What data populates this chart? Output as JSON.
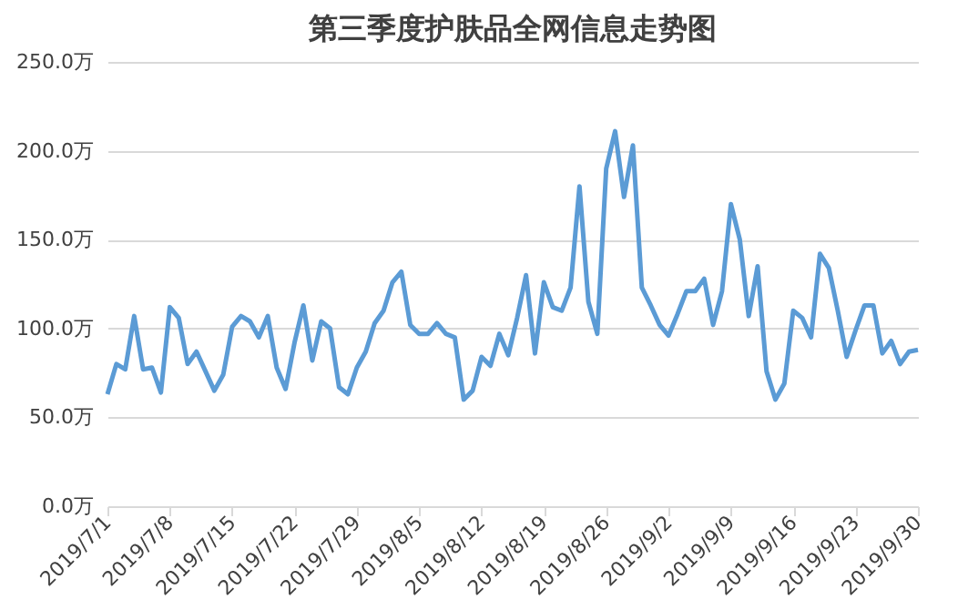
{
  "chart_data": {
    "type": "line",
    "title": "第三季度护肤品全网信息走势图",
    "x": [
      "2019-07-01",
      "2019-07-02",
      "2019-07-03",
      "2019-07-04",
      "2019-07-05",
      "2019-07-06",
      "2019-07-07",
      "2019-07-08",
      "2019-07-09",
      "2019-07-10",
      "2019-07-11",
      "2019-07-12",
      "2019-07-13",
      "2019-07-14",
      "2019-07-15",
      "2019-07-16",
      "2019-07-17",
      "2019-07-18",
      "2019-07-19",
      "2019-07-20",
      "2019-07-21",
      "2019-07-22",
      "2019-07-23",
      "2019-07-24",
      "2019-07-25",
      "2019-07-26",
      "2019-07-27",
      "2019-07-28",
      "2019-07-29",
      "2019-07-30",
      "2019-07-31",
      "2019-08-01",
      "2019-08-02",
      "2019-08-03",
      "2019-08-04",
      "2019-08-05",
      "2019-08-06",
      "2019-08-07",
      "2019-08-08",
      "2019-08-09",
      "2019-08-10",
      "2019-08-11",
      "2019-08-12",
      "2019-08-13",
      "2019-08-14",
      "2019-08-15",
      "2019-08-16",
      "2019-08-17",
      "2019-08-18",
      "2019-08-19",
      "2019-08-20",
      "2019-08-21",
      "2019-08-22",
      "2019-08-23",
      "2019-08-24",
      "2019-08-25",
      "2019-08-26",
      "2019-08-27",
      "2019-08-28",
      "2019-08-29",
      "2019-08-30",
      "2019-08-31",
      "2019-09-01",
      "2019-09-02",
      "2019-09-03",
      "2019-09-04",
      "2019-09-05",
      "2019-09-06",
      "2019-09-07",
      "2019-09-08",
      "2019-09-09",
      "2019-09-10",
      "2019-09-11",
      "2019-09-12",
      "2019-09-13",
      "2019-09-14",
      "2019-09-15",
      "2019-09-16",
      "2019-09-17",
      "2019-09-18",
      "2019-09-19",
      "2019-09-20",
      "2019-09-21",
      "2019-09-22",
      "2019-09-23",
      "2019-09-24",
      "2019-09-25",
      "2019-09-26",
      "2019-09-27",
      "2019-09-28",
      "2019-09-29",
      "2019-09-30"
    ],
    "series": [
      {
        "color": "#5b9bd5",
        "values": [
          63,
          80,
          77,
          107,
          77,
          78,
          64,
          112,
          106,
          80,
          87,
          76,
          65,
          74,
          101,
          107,
          104,
          95,
          107,
          78,
          66,
          92,
          113,
          82,
          104,
          100,
          67,
          63,
          78,
          87,
          103,
          110,
          126,
          132,
          102,
          97,
          97,
          103,
          97,
          95,
          60,
          65,
          84,
          79,
          97,
          85,
          106,
          130,
          86,
          126,
          112,
          110,
          123,
          180,
          115,
          97,
          190,
          211,
          174,
          203,
          123,
          113,
          102,
          96,
          108,
          121,
          121,
          128,
          102,
          121,
          170,
          150,
          107,
          135,
          76,
          60,
          69,
          110,
          106,
          95,
          142,
          134,
          110,
          84,
          99,
          113,
          113,
          86,
          93,
          80,
          87,
          88
        ]
      }
    ],
    "xlim": [
      "2019-07-01",
      "2019-09-30"
    ],
    "xticks": [
      {
        "value": "2019-07-01",
        "label": "2019/7/1"
      },
      {
        "value": "2019-07-08",
        "label": "2019/7/8"
      },
      {
        "value": "2019-07-15",
        "label": "2019/7/15"
      },
      {
        "value": "2019-07-22",
        "label": "2019/7/22"
      },
      {
        "value": "2019-07-29",
        "label": "2019/7/29"
      },
      {
        "value": "2019-08-05",
        "label": "2019/8/5"
      },
      {
        "value": "2019-08-12",
        "label": "2019/8/12"
      },
      {
        "value": "2019-08-19",
        "label": "2019/8/19"
      },
      {
        "value": "2019-08-26",
        "label": "2019/8/26"
      },
      {
        "value": "2019-09-02",
        "label": "2019/9/2"
      },
      {
        "value": "2019-09-09",
        "label": "2019/9/9"
      },
      {
        "value": "2019-09-16",
        "label": "2019/9/16"
      },
      {
        "value": "2019-09-23",
        "label": "2019/9/23"
      },
      {
        "value": "2019-09-30",
        "label": "2019/9/30"
      }
    ],
    "ylim": [
      0,
      250
    ],
    "yticks": [
      {
        "value": 0,
        "label": "0.0万"
      },
      {
        "value": 50,
        "label": "50.0万"
      },
      {
        "value": 100,
        "label": "100.0万"
      },
      {
        "value": 150,
        "label": "150.0万"
      },
      {
        "value": 200,
        "label": "200.0万"
      },
      {
        "value": 250,
        "label": "250.0万"
      }
    ],
    "grid": "y",
    "marker": "none",
    "line_style": "solid",
    "legend": false
  }
}
